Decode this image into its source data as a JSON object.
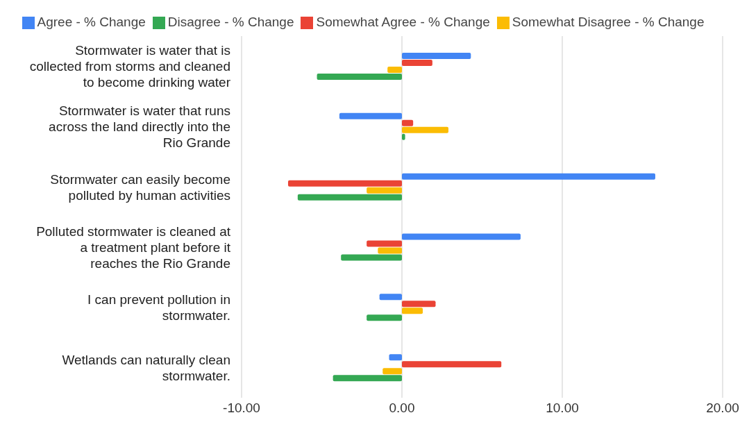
{
  "chart_data": {
    "type": "bar",
    "orientation": "horizontal",
    "categories": [
      "Stormwater is water that is collected from storms and cleaned to become drinking water",
      "Stormwater is water that runs across the land directly into the Rio Grande",
      "Stormwater can easily become polluted by human activities",
      "Polluted stormwater is cleaned at a treatment plant before it reaches the Rio Grande",
      "I can prevent pollution in stormwater.",
      "Wetlands can naturally clean stormwater."
    ],
    "series": [
      {
        "name": "Agree - % Change",
        "color": "#4285f4",
        "values": [
          4.3,
          -3.9,
          15.8,
          7.4,
          -1.4,
          -0.8
        ]
      },
      {
        "name": "Somewhat Agree - % Change",
        "color": "#ea4335",
        "values": [
          1.9,
          0.7,
          -7.1,
          -2.2,
          2.1,
          6.2
        ]
      },
      {
        "name": "Somewhat Disagree - % Change",
        "color": "#fbbc04",
        "values": [
          -0.9,
          2.9,
          -2.2,
          -1.5,
          1.3,
          -1.2
        ]
      },
      {
        "name": "Disagree - % Change",
        "color": "#34a853",
        "values": [
          -5.3,
          0.2,
          -6.5,
          -3.8,
          -2.2,
          -4.3
        ]
      }
    ],
    "xlim": [
      -10,
      20
    ],
    "xticks": [
      {
        "value": -10,
        "label": "-10.00"
      },
      {
        "value": 0,
        "label": "0.00"
      },
      {
        "value": 10,
        "label": "10.00"
      },
      {
        "value": 20,
        "label": "20.00"
      }
    ],
    "grid": "x",
    "legend": "top"
  }
}
